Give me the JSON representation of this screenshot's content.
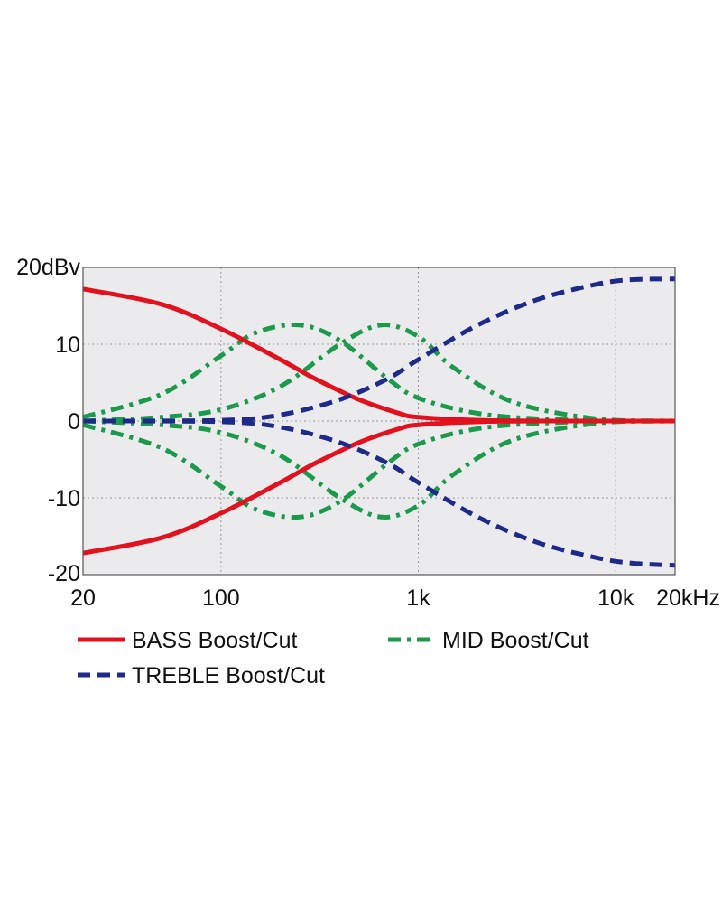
{
  "chart_data": {
    "type": "line",
    "x_scale": "log",
    "xlim": [
      20,
      20000
    ],
    "ylim": [
      -20,
      20
    ],
    "grid": true,
    "legend_placement": "bottom",
    "x_ticks": [
      {
        "value": 20,
        "label": "20"
      },
      {
        "value": 100,
        "label": "100"
      },
      {
        "value": 1000,
        "label": "1k"
      },
      {
        "value": 10000,
        "label": "10k"
      },
      {
        "value": 20000,
        "label": "20kHz"
      }
    ],
    "y_ticks": [
      {
        "value": 20,
        "label": "20dBv"
      },
      {
        "value": 10,
        "label": "10"
      },
      {
        "value": 0,
        "label": "0"
      },
      {
        "value": -10,
        "label": "-10"
      },
      {
        "value": -20,
        "label": "-20"
      }
    ],
    "colors": {
      "bass": "#e3101e",
      "mid": "#1a9a4a",
      "treble": "#1e2a8a",
      "plot_background": "#ebebee",
      "grid": "#9a9a9a"
    },
    "legend": [
      {
        "label": "BASS Boost/Cut",
        "style": "solid",
        "color": "#e3101e"
      },
      {
        "label": "MID Boost/Cut",
        "style": "dash-dot",
        "color": "#1a9a4a"
      },
      {
        "label": "TREBLE Boost/Cut",
        "style": "dashed",
        "color": "#1e2a8a"
      }
    ],
    "series": [
      {
        "group": "BASS Boost/Cut",
        "style": "solid",
        "color": "#e3101e",
        "x": [
          20,
          50,
          100,
          200,
          300,
          500,
          800,
          1000,
          2000,
          5000,
          20000
        ],
        "y": [
          17.2,
          15.2,
          12.0,
          8.0,
          5.5,
          2.8,
          1.0,
          0.5,
          0.1,
          0.0,
          0.0
        ]
      },
      {
        "group": "BASS Boost/Cut",
        "style": "solid",
        "color": "#e3101e",
        "x": [
          20,
          50,
          100,
          200,
          300,
          500,
          800,
          1000,
          2000,
          5000,
          20000
        ],
        "y": [
          -17.2,
          -15.2,
          -12.0,
          -8.0,
          -5.5,
          -2.8,
          -1.0,
          -0.5,
          -0.1,
          0.0,
          0.0
        ]
      },
      {
        "group": "MID Boost/Cut",
        "style": "dash-dot",
        "color": "#1a9a4a",
        "x": [
          20,
          50,
          100,
          150,
          250,
          400,
          700,
          1000,
          2000,
          5000,
          20000
        ],
        "y": [
          0.5,
          3.5,
          8.5,
          11.5,
          12.5,
          10.5,
          5.5,
          3.0,
          1.0,
          0.2,
          0.0
        ]
      },
      {
        "group": "MID Boost/Cut",
        "style": "dash-dot",
        "color": "#1a9a4a",
        "x": [
          20,
          50,
          100,
          150,
          250,
          400,
          700,
          1000,
          2000,
          5000,
          20000
        ],
        "y": [
          -0.5,
          -3.5,
          -8.5,
          -11.5,
          -12.5,
          -10.5,
          -5.5,
          -3.0,
          -1.0,
          -0.2,
          0.0
        ]
      },
      {
        "group": "MID Boost/Cut",
        "style": "dash-dot",
        "color": "#1a9a4a",
        "x": [
          20,
          50,
          100,
          200,
          400,
          650,
          1000,
          1500,
          3000,
          8000,
          20000
        ],
        "y": [
          0.0,
          0.5,
          1.5,
          4.5,
          10.0,
          12.5,
          11.0,
          7.0,
          2.5,
          0.3,
          0.0
        ]
      },
      {
        "group": "MID Boost/Cut",
        "style": "dash-dot",
        "color": "#1a9a4a",
        "x": [
          20,
          50,
          100,
          200,
          400,
          650,
          1000,
          1500,
          3000,
          8000,
          20000
        ],
        "y": [
          0.0,
          -0.5,
          -1.5,
          -4.5,
          -10.0,
          -12.5,
          -11.0,
          -7.0,
          -2.5,
          -0.3,
          0.0
        ]
      },
      {
        "group": "TREBLE Boost/Cut",
        "style": "dashed",
        "color": "#1e2a8a",
        "x": [
          20,
          100,
          200,
          400,
          700,
          1000,
          2000,
          4000,
          8000,
          12000,
          20000
        ],
        "y": [
          0.0,
          0.1,
          0.8,
          2.8,
          5.5,
          8.0,
          12.5,
          15.8,
          17.8,
          18.4,
          18.5
        ]
      },
      {
        "group": "TREBLE Boost/Cut",
        "style": "dashed",
        "color": "#1e2a8a",
        "x": [
          20,
          100,
          200,
          400,
          700,
          1000,
          2000,
          4000,
          8000,
          12000,
          20000
        ],
        "y": [
          0.0,
          -0.1,
          -0.8,
          -2.8,
          -5.5,
          -8.0,
          -12.5,
          -15.8,
          -17.8,
          -18.5,
          -18.8
        ]
      }
    ]
  }
}
